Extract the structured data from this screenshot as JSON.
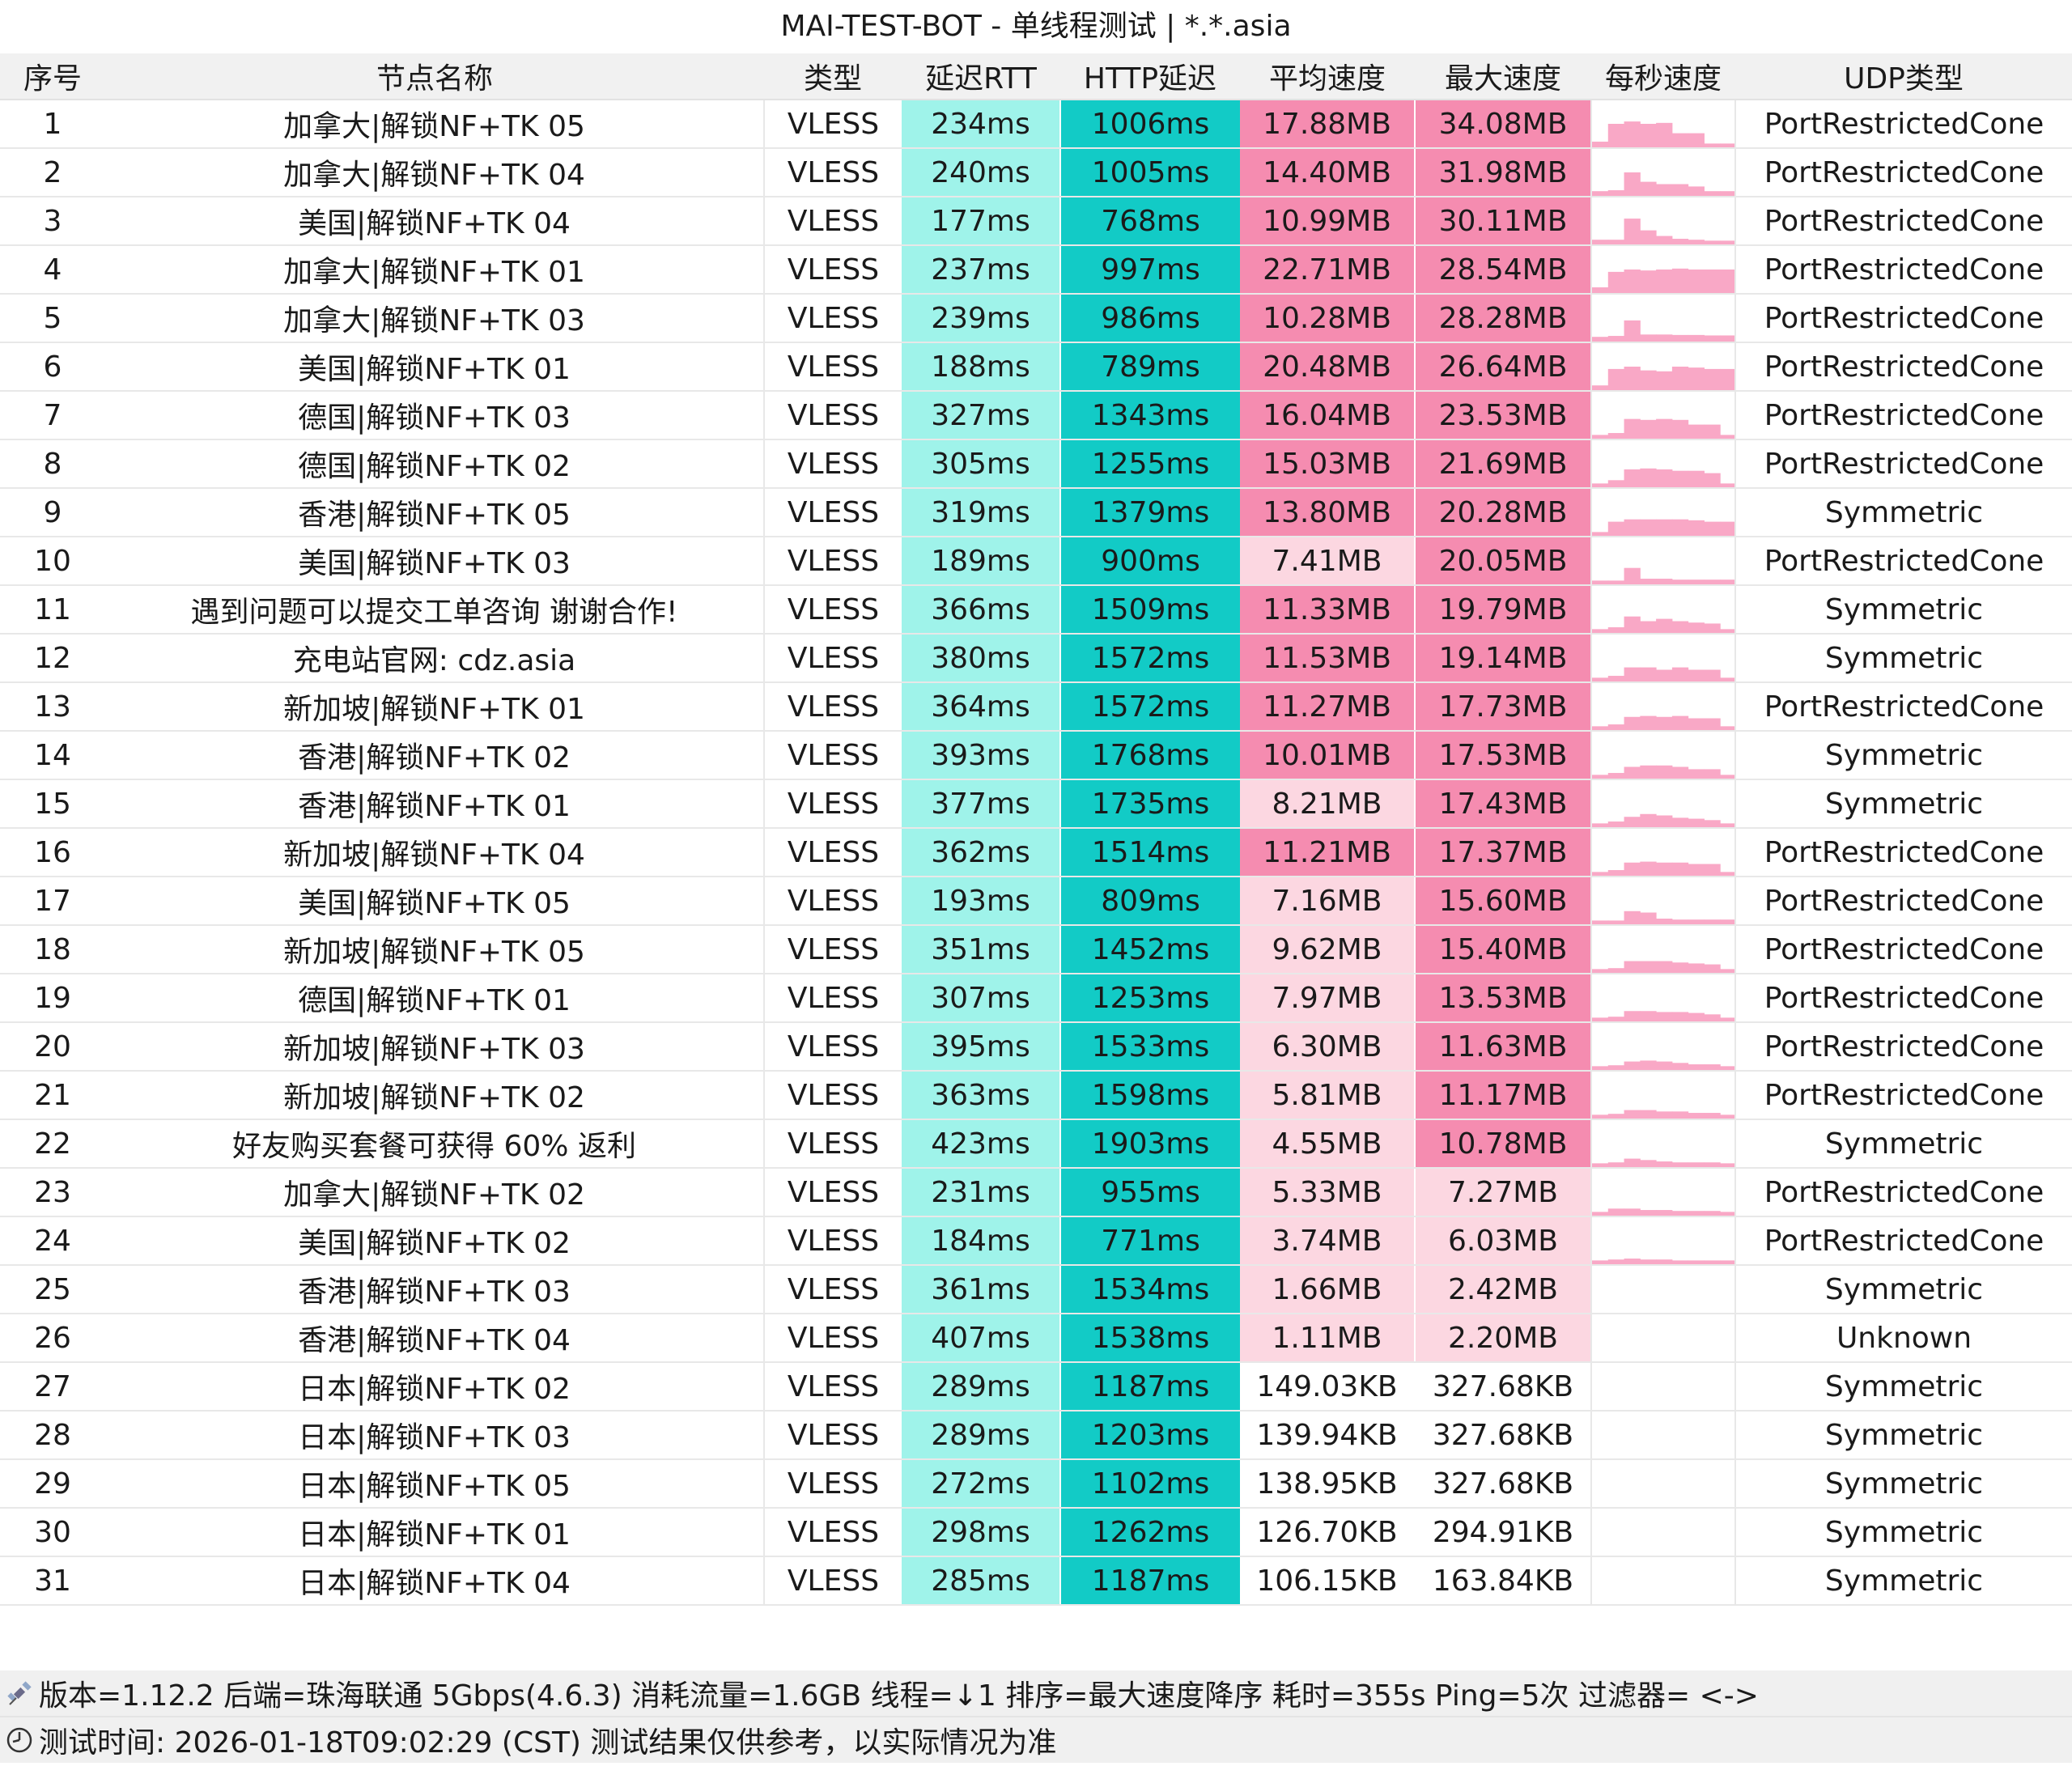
{
  "title": "MAI-TEST-BOT - 单线程测试 | *.*.asia",
  "headers": [
    "序号",
    "节点名称",
    "类型",
    "延迟RTT",
    "HTTP延迟",
    "平均速度",
    "最大速度",
    "每秒速度",
    "UDP类型"
  ],
  "rows": [
    {
      "no": "1",
      "name": "加拿大|解锁NF+TK 05",
      "type": "VLESS",
      "rtt": "234ms",
      "http": "1006ms",
      "avg": "17.88MB",
      "max": "34.08MB",
      "udp": "PortRestrictedCone",
      "spark": [
        0.12,
        0.5,
        0.55,
        0.5,
        0.52,
        0.3,
        0.3,
        0.08,
        0.08
      ]
    },
    {
      "no": "2",
      "name": "加拿大|解锁NF+TK 04",
      "type": "VLESS",
      "rtt": "240ms",
      "http": "1005ms",
      "avg": "14.40MB",
      "max": "31.98MB",
      "udp": "PortRestrictedCone",
      "spark": [
        0.1,
        0.12,
        0.5,
        0.3,
        0.25,
        0.25,
        0.2,
        0.1,
        0.1
      ]
    },
    {
      "no": "3",
      "name": "美国|解锁NF+TK 04",
      "type": "VLESS",
      "rtt": "177ms",
      "http": "768ms",
      "avg": "10.99MB",
      "max": "30.11MB",
      "udp": "PortRestrictedCone",
      "spark": [
        0.1,
        0.1,
        0.55,
        0.3,
        0.18,
        0.12,
        0.1,
        0.08,
        0.08
      ]
    },
    {
      "no": "4",
      "name": "加拿大|解锁NF+TK 01",
      "type": "VLESS",
      "rtt": "237ms",
      "http": "997ms",
      "avg": "22.71MB",
      "max": "28.54MB",
      "udp": "PortRestrictedCone",
      "spark": [
        0.12,
        0.45,
        0.5,
        0.48,
        0.5,
        0.52,
        0.5,
        0.5,
        0.5
      ]
    },
    {
      "no": "5",
      "name": "加拿大|解锁NF+TK 03",
      "type": "VLESS",
      "rtt": "239ms",
      "http": "986ms",
      "avg": "10.28MB",
      "max": "28.28MB",
      "udp": "PortRestrictedCone",
      "spark": [
        0.1,
        0.12,
        0.45,
        0.15,
        0.15,
        0.14,
        0.14,
        0.13,
        0.13
      ]
    },
    {
      "no": "6",
      "name": "美国|解锁NF+TK 01",
      "type": "VLESS",
      "rtt": "188ms",
      "http": "789ms",
      "avg": "20.48MB",
      "max": "26.64MB",
      "udp": "PortRestrictedCone",
      "spark": [
        0.1,
        0.45,
        0.5,
        0.42,
        0.4,
        0.5,
        0.48,
        0.45,
        0.45
      ]
    },
    {
      "no": "7",
      "name": "德国|解锁NF+TK 03",
      "type": "VLESS",
      "rtt": "327ms",
      "http": "1343ms",
      "avg": "16.04MB",
      "max": "23.53MB",
      "udp": "PortRestrictedCone",
      "spark": [
        0.08,
        0.12,
        0.42,
        0.4,
        0.42,
        0.4,
        0.3,
        0.3,
        0.08
      ]
    },
    {
      "no": "8",
      "name": "德国|解锁NF+TK 02",
      "type": "VLESS",
      "rtt": "305ms",
      "http": "1255ms",
      "avg": "15.03MB",
      "max": "21.69MB",
      "udp": "PortRestrictedCone",
      "spark": [
        0.08,
        0.15,
        0.38,
        0.4,
        0.38,
        0.35,
        0.35,
        0.3,
        0.08
      ]
    },
    {
      "no": "9",
      "name": "香港|解锁NF+TK 05",
      "type": "VLESS",
      "rtt": "319ms",
      "http": "1379ms",
      "avg": "13.80MB",
      "max": "20.28MB",
      "udp": "Symmetric",
      "spark": [
        0.08,
        0.3,
        0.35,
        0.35,
        0.35,
        0.35,
        0.33,
        0.3,
        0.3
      ]
    },
    {
      "no": "10",
      "name": "美国|解锁NF+TK 03",
      "type": "VLESS",
      "rtt": "189ms",
      "http": "900ms",
      "avg": "7.41MB",
      "max": "20.05MB",
      "udp": "PortRestrictedCone",
      "spark": [
        0.08,
        0.08,
        0.35,
        0.12,
        0.12,
        0.1,
        0.1,
        0.1,
        0.1
      ]
    },
    {
      "no": "11",
      "name": "遇到问题可以提交工单咨询 谢谢合作!",
      "type": "VLESS",
      "rtt": "366ms",
      "http": "1509ms",
      "avg": "11.33MB",
      "max": "19.79MB",
      "udp": "Symmetric",
      "spark": [
        0.08,
        0.12,
        0.35,
        0.25,
        0.3,
        0.25,
        0.22,
        0.2,
        0.08
      ]
    },
    {
      "no": "12",
      "name": "充电站官网: cdz.asia",
      "type": "VLESS",
      "rtt": "380ms",
      "http": "1572ms",
      "avg": "11.53MB",
      "max": "19.14MB",
      "udp": "Symmetric",
      "spark": [
        0.08,
        0.12,
        0.3,
        0.3,
        0.25,
        0.3,
        0.25,
        0.25,
        0.08
      ]
    },
    {
      "no": "13",
      "name": "新加坡|解锁NF+TK 01",
      "type": "VLESS",
      "rtt": "364ms",
      "http": "1572ms",
      "avg": "11.27MB",
      "max": "17.73MB",
      "udp": "PortRestrictedCone",
      "spark": [
        0.08,
        0.12,
        0.28,
        0.3,
        0.28,
        0.3,
        0.25,
        0.25,
        0.08
      ]
    },
    {
      "no": "14",
      "name": "香港|解锁NF+TK 02",
      "type": "VLESS",
      "rtt": "393ms",
      "http": "1768ms",
      "avg": "10.01MB",
      "max": "17.53MB",
      "udp": "Symmetric",
      "spark": [
        0.08,
        0.12,
        0.25,
        0.28,
        0.28,
        0.25,
        0.2,
        0.2,
        0.08
      ]
    },
    {
      "no": "15",
      "name": "香港|解锁NF+TK 01",
      "type": "VLESS",
      "rtt": "377ms",
      "http": "1735ms",
      "avg": "8.21MB",
      "max": "17.43MB",
      "udp": "Symmetric",
      "spark": [
        0.08,
        0.12,
        0.22,
        0.28,
        0.25,
        0.2,
        0.18,
        0.15,
        0.08
      ]
    },
    {
      "no": "16",
      "name": "新加坡|解锁NF+TK 04",
      "type": "VLESS",
      "rtt": "362ms",
      "http": "1514ms",
      "avg": "11.21MB",
      "max": "17.37MB",
      "udp": "PortRestrictedCone",
      "spark": [
        0.08,
        0.12,
        0.28,
        0.3,
        0.28,
        0.28,
        0.25,
        0.25,
        0.08
      ]
    },
    {
      "no": "17",
      "name": "美国|解锁NF+TK 05",
      "type": "VLESS",
      "rtt": "193ms",
      "http": "809ms",
      "avg": "7.16MB",
      "max": "15.60MB",
      "udp": "PortRestrictedCone",
      "spark": [
        0.08,
        0.08,
        0.28,
        0.25,
        0.12,
        0.1,
        0.1,
        0.1,
        0.1
      ]
    },
    {
      "no": "18",
      "name": "新加坡|解锁NF+TK 05",
      "type": "VLESS",
      "rtt": "351ms",
      "http": "1452ms",
      "avg": "9.62MB",
      "max": "15.40MB",
      "udp": "PortRestrictedCone",
      "spark": [
        0.08,
        0.1,
        0.25,
        0.25,
        0.25,
        0.22,
        0.2,
        0.18,
        0.08
      ]
    },
    {
      "no": "19",
      "name": "德国|解锁NF+TK 01",
      "type": "VLESS",
      "rtt": "307ms",
      "http": "1253ms",
      "avg": "7.97MB",
      "max": "13.53MB",
      "udp": "PortRestrictedCone",
      "spark": [
        0.08,
        0.1,
        0.22,
        0.22,
        0.2,
        0.2,
        0.18,
        0.15,
        0.08
      ]
    },
    {
      "no": "20",
      "name": "新加坡|解锁NF+TK 03",
      "type": "VLESS",
      "rtt": "395ms",
      "http": "1533ms",
      "avg": "6.30MB",
      "max": "11.63MB",
      "udp": "PortRestrictedCone",
      "spark": [
        0.08,
        0.1,
        0.18,
        0.2,
        0.18,
        0.15,
        0.12,
        0.12,
        0.08
      ]
    },
    {
      "no": "21",
      "name": "新加坡|解锁NF+TK 02",
      "type": "VLESS",
      "rtt": "363ms",
      "http": "1598ms",
      "avg": "5.81MB",
      "max": "11.17MB",
      "udp": "PortRestrictedCone",
      "spark": [
        0.08,
        0.1,
        0.18,
        0.18,
        0.15,
        0.15,
        0.12,
        0.12,
        0.08
      ]
    },
    {
      "no": "22",
      "name": "好友购买套餐可获得 60% 返利",
      "type": "VLESS",
      "rtt": "423ms",
      "http": "1903ms",
      "avg": "4.55MB",
      "max": "10.78MB",
      "udp": "Symmetric",
      "spark": [
        0.08,
        0.1,
        0.18,
        0.15,
        0.12,
        0.1,
        0.1,
        0.1,
        0.08
      ]
    },
    {
      "no": "23",
      "name": "加拿大|解锁NF+TK 02",
      "type": "VLESS",
      "rtt": "231ms",
      "http": "955ms",
      "avg": "5.33MB",
      "max": "7.27MB",
      "udp": "PortRestrictedCone",
      "spark": [
        0.08,
        0.15,
        0.15,
        0.12,
        0.12,
        0.1,
        0.1,
        0.1,
        0.08
      ]
    },
    {
      "no": "24",
      "name": "美国|解锁NF+TK 02",
      "type": "VLESS",
      "rtt": "184ms",
      "http": "771ms",
      "avg": "3.74MB",
      "max": "6.03MB",
      "udp": "PortRestrictedCone",
      "spark": [
        0.08,
        0.1,
        0.12,
        0.1,
        0.1,
        0.08,
        0.08,
        0.08,
        0.08
      ]
    },
    {
      "no": "25",
      "name": "香港|解锁NF+TK 03",
      "type": "VLESS",
      "rtt": "361ms",
      "http": "1534ms",
      "avg": "1.66MB",
      "max": "2.42MB",
      "udp": "Symmetric",
      "spark": []
    },
    {
      "no": "26",
      "name": "香港|解锁NF+TK 04",
      "type": "VLESS",
      "rtt": "407ms",
      "http": "1538ms",
      "avg": "1.11MB",
      "max": "2.20MB",
      "udp": "Unknown",
      "spark": []
    },
    {
      "no": "27",
      "name": "日本|解锁NF+TK 02",
      "type": "VLESS",
      "rtt": "289ms",
      "http": "1187ms",
      "avg": "149.03KB",
      "max": "327.68KB",
      "udp": "Symmetric",
      "spark": []
    },
    {
      "no": "28",
      "name": "日本|解锁NF+TK 03",
      "type": "VLESS",
      "rtt": "289ms",
      "http": "1203ms",
      "avg": "139.94KB",
      "max": "327.68KB",
      "udp": "Symmetric",
      "spark": []
    },
    {
      "no": "29",
      "name": "日本|解锁NF+TK 05",
      "type": "VLESS",
      "rtt": "272ms",
      "http": "1102ms",
      "avg": "138.95KB",
      "max": "327.68KB",
      "udp": "Symmetric",
      "spark": []
    },
    {
      "no": "30",
      "name": "日本|解锁NF+TK 01",
      "type": "VLESS",
      "rtt": "298ms",
      "http": "1262ms",
      "avg": "126.70KB",
      "max": "294.91KB",
      "udp": "Symmetric",
      "spark": []
    },
    {
      "no": "31",
      "name": "日本|解锁NF+TK 04",
      "type": "VLESS",
      "rtt": "285ms",
      "http": "1187ms",
      "avg": "106.15KB",
      "max": "163.84KB",
      "udp": "Symmetric",
      "spark": []
    }
  ],
  "footer": {
    "line1": "版本=1.12.2  后端=珠海联通 5Gbps(4.6.3) 消耗流量=1.6GB  线程=↓1  排序=最大速度降序  耗时=355s  Ping=5次  过滤器= <->",
    "line2": "测试时间: 2026-01-18T09:02:29 (CST)  测试结果仅供参考，以实际情况为准",
    "icon1": "satellite-icon",
    "icon2": "clock-icon"
  },
  "colors": {
    "rtt_light": "#9ff3ea",
    "rtt_dark": "#40e0d0",
    "http_light": "#55e6dc",
    "http_dark": "#12cbc6",
    "speed_light": "#fcd7e1",
    "speed_mid": "#f9a6be",
    "speed_dark": "#f58cb0",
    "spark": "#f9a8c6"
  }
}
